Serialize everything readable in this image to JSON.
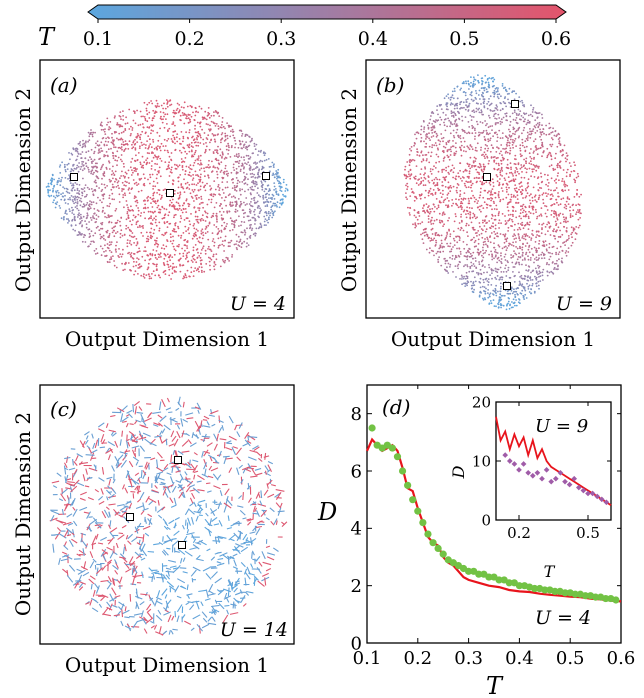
{
  "colorbar": {
    "label": "T",
    "ticks": [
      "0.1",
      "0.2",
      "0.3",
      "0.4",
      "0.5",
      "0.6"
    ],
    "range": [
      0.1,
      0.6
    ],
    "color_low": "#5ba7df",
    "color_high": "#e4546b"
  },
  "panels": [
    {
      "tag": "(a)",
      "u_label": "U = 4",
      "xlabel": "Output Dimension 1",
      "ylabel": "Output Dimension 2"
    },
    {
      "tag": "(b)",
      "u_label": "U = 9",
      "xlabel": "Output Dimension 1",
      "ylabel": "Output Dimension 2"
    },
    {
      "tag": "(c)",
      "u_label": "U = 14",
      "xlabel": "Output Dimension 1",
      "ylabel": "Output Dimension 2"
    }
  ],
  "chart_data": [
    {
      "type": "line",
      "tag": "(d)",
      "annotation": "U = 4",
      "xlabel": "T",
      "ylabel": "D",
      "xlim": [
        0.1,
        0.6
      ],
      "ylim": [
        0,
        9
      ],
      "xticks": [
        "0.1",
        "0.2",
        "0.3",
        "0.4",
        "0.5",
        "0.6"
      ],
      "yticks": [
        "0",
        "2",
        "4",
        "6",
        "8"
      ],
      "series": [
        {
          "style": "line",
          "color": "#e8141c",
          "x": [
            0.1,
            0.11,
            0.12,
            0.13,
            0.14,
            0.15,
            0.16,
            0.17,
            0.18,
            0.19,
            0.2,
            0.21,
            0.22,
            0.23,
            0.24,
            0.25,
            0.26,
            0.27,
            0.28,
            0.29,
            0.3,
            0.32,
            0.34,
            0.36,
            0.38,
            0.4,
            0.42,
            0.44,
            0.46,
            0.48,
            0.5,
            0.52,
            0.54,
            0.56,
            0.58,
            0.6
          ],
          "y": [
            6.7,
            7.1,
            6.9,
            6.7,
            6.8,
            6.9,
            6.7,
            6.1,
            5.4,
            5.3,
            4.7,
            4.2,
            3.7,
            3.5,
            3.4,
            3.0,
            2.8,
            2.7,
            2.5,
            2.3,
            2.2,
            2.1,
            2.0,
            1.95,
            1.85,
            1.8,
            1.78,
            1.72,
            1.68,
            1.65,
            1.62,
            1.6,
            1.55,
            1.52,
            1.48,
            1.45
          ]
        },
        {
          "style": "scatter",
          "color": "#72c244",
          "x": [
            0.11,
            0.12,
            0.13,
            0.14,
            0.15,
            0.16,
            0.17,
            0.18,
            0.19,
            0.2,
            0.21,
            0.22,
            0.23,
            0.24,
            0.25,
            0.26,
            0.27,
            0.28,
            0.29,
            0.3,
            0.31,
            0.32,
            0.33,
            0.34,
            0.35,
            0.36,
            0.37,
            0.38,
            0.39,
            0.4,
            0.41,
            0.42,
            0.43,
            0.44,
            0.45,
            0.46,
            0.47,
            0.48,
            0.49,
            0.5,
            0.51,
            0.52,
            0.53,
            0.54,
            0.55,
            0.56,
            0.57,
            0.58,
            0.59
          ],
          "y": [
            7.5,
            6.9,
            6.8,
            6.9,
            6.8,
            6.5,
            6.0,
            5.5,
            5.0,
            4.6,
            4.2,
            3.8,
            3.5,
            3.3,
            3.1,
            2.9,
            2.8,
            2.7,
            2.6,
            2.5,
            2.5,
            2.4,
            2.4,
            2.3,
            2.3,
            2.2,
            2.2,
            2.1,
            2.1,
            2.0,
            2.0,
            1.95,
            1.9,
            1.9,
            1.85,
            1.85,
            1.8,
            1.8,
            1.75,
            1.75,
            1.7,
            1.7,
            1.65,
            1.65,
            1.6,
            1.6,
            1.55,
            1.55,
            1.5
          ]
        }
      ]
    },
    {
      "type": "line",
      "inset": true,
      "annotation": "U = 9",
      "xlabel": "T",
      "ylabel": "D",
      "xlim": [
        0.1,
        0.6
      ],
      "ylim": [
        0,
        20
      ],
      "xticks": [
        "0.2",
        "0.5"
      ],
      "yticks": [
        "0",
        "10",
        "20"
      ],
      "series": [
        {
          "style": "line",
          "color": "#e8141c",
          "x": [
            0.1,
            0.12,
            0.14,
            0.16,
            0.18,
            0.2,
            0.22,
            0.24,
            0.26,
            0.28,
            0.3,
            0.32,
            0.34,
            0.36,
            0.38,
            0.4,
            0.42,
            0.44,
            0.46,
            0.48,
            0.5,
            0.52,
            0.54,
            0.56,
            0.58,
            0.6
          ],
          "y": [
            17.5,
            13.5,
            15.0,
            12.0,
            14.5,
            12.5,
            14.0,
            11.0,
            13.5,
            10.5,
            12.0,
            10.0,
            9.0,
            8.5,
            8.0,
            7.5,
            7.0,
            6.5,
            6.0,
            5.5,
            5.0,
            4.5,
            4.0,
            3.5,
            3.0,
            2.5
          ]
        },
        {
          "style": "scatter",
          "color": "#a05ca8",
          "x": [
            0.14,
            0.16,
            0.18,
            0.2,
            0.22,
            0.24,
            0.26,
            0.28,
            0.3,
            0.32,
            0.34,
            0.36,
            0.38,
            0.4,
            0.42,
            0.44,
            0.46,
            0.48,
            0.5,
            0.52,
            0.54,
            0.56,
            0.58
          ],
          "y": [
            11.0,
            10.0,
            9.5,
            8.5,
            9.5,
            8.0,
            7.5,
            8.0,
            7.0,
            8.5,
            6.5,
            7.0,
            8.0,
            6.5,
            6.0,
            7.0,
            5.5,
            5.0,
            4.5,
            4.5,
            4.0,
            3.5,
            3.0
          ]
        }
      ]
    }
  ]
}
